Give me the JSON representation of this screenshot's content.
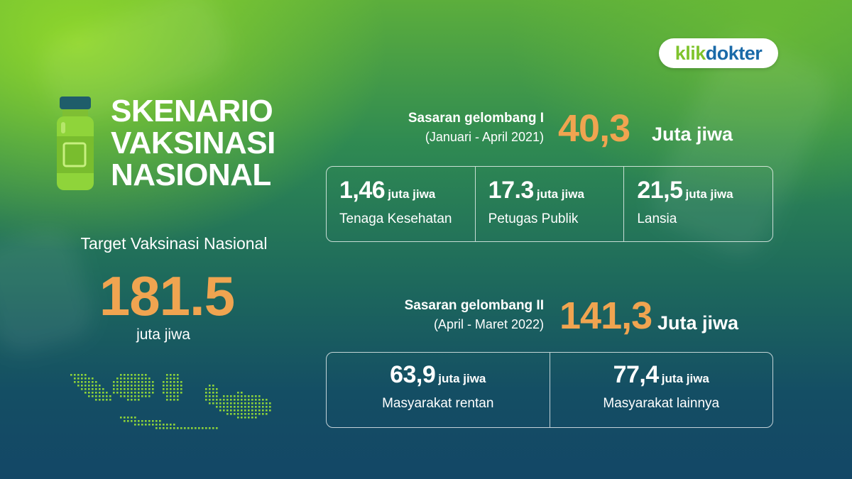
{
  "brand": {
    "part1": "klik",
    "part2": "dokter"
  },
  "title": {
    "line1": "SKENARIO",
    "line2": "VAKSINASI",
    "line3": "NASIONAL"
  },
  "target": {
    "label": "Target Vaksinasi Nasional",
    "value": "181.5",
    "unit": "juta jiwa"
  },
  "wave1": {
    "title": "Sasaran gelombang I",
    "period": "(Januari -  April 2021)",
    "value": "40,3",
    "unit": "Juta jiwa",
    "groups": [
      {
        "value": "1,46",
        "unit": "juta jiwa",
        "label": "Tenaga Kesehatan"
      },
      {
        "value": "17.3",
        "unit": "juta jiwa",
        "label": "Petugas Publik"
      },
      {
        "value": "21,5",
        "unit": "juta jiwa",
        "label": "Lansia"
      }
    ]
  },
  "wave2": {
    "title": "Sasaran gelombang II",
    "period": "(April - Maret 2022)",
    "value": "141,3",
    "unit": "Juta jiwa",
    "groups": [
      {
        "value": "63,9",
        "unit": "juta jiwa",
        "label": "Masyarakat rentan"
      },
      {
        "value": "77,4",
        "unit": "juta jiwa",
        "label": "Masyarakat lainnya"
      }
    ]
  },
  "colors": {
    "accent": "#f0a450",
    "brand_green": "#7fc32c",
    "brand_blue": "#1a6aa8",
    "vial_green": "#8fd43a"
  },
  "icons": [
    "vaccine-vial-icon",
    "indonesia-map-dots"
  ]
}
